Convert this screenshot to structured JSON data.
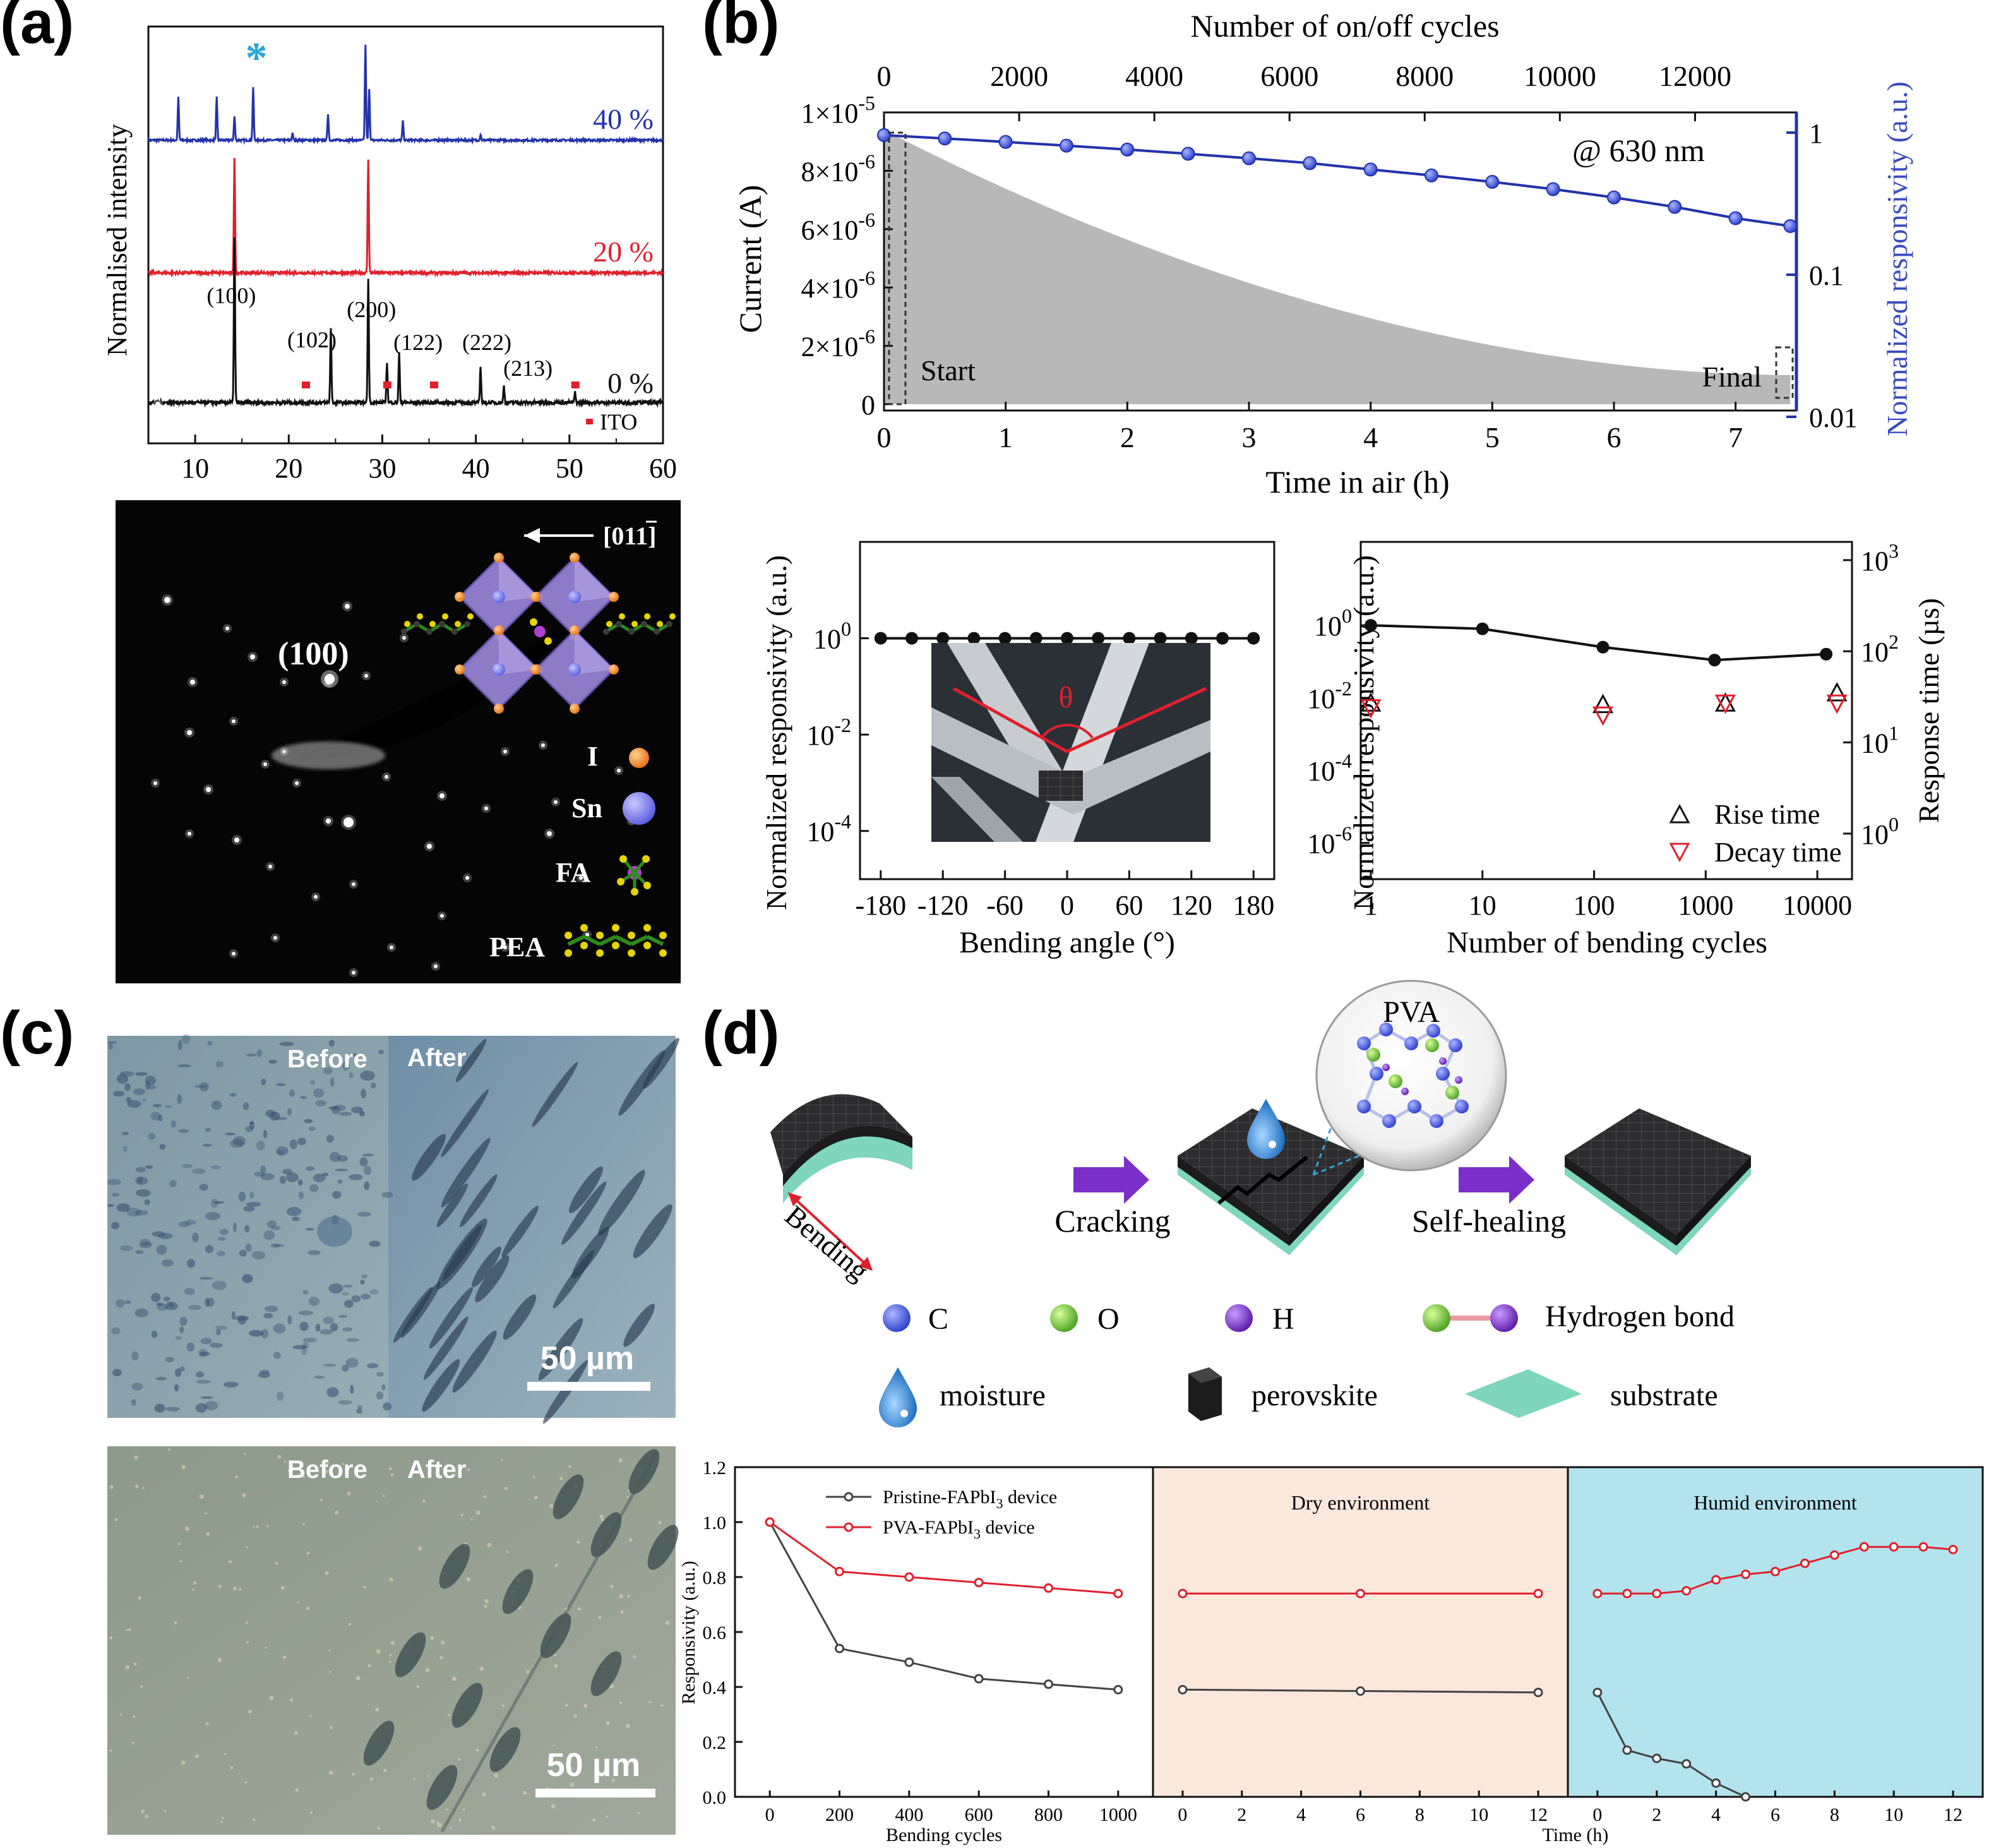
{
  "panels": {
    "a": "(a)",
    "b": "(b)",
    "c": "(c)",
    "d": "(d)"
  },
  "colors": {
    "blue": "#2233aa",
    "red": "#e0202c",
    "black": "#111111",
    "cyan": "#2aa6d9",
    "gray_fill": "#b8b8b8",
    "dry_bg": "#fbe8dc",
    "humid_bg": "#b3e3ed",
    "teal": "#7fd6bd",
    "purple": "#7a30c8"
  },
  "chart_data": [
    {
      "id": "xrd",
      "type": "line",
      "xlabel": "",
      "ylabel": "Normalised intensity",
      "xlim": [
        5,
        60
      ],
      "xticks": [
        10,
        20,
        30,
        40,
        50,
        60
      ],
      "series": [
        {
          "name": "40 %",
          "color": "#2233aa",
          "peaks": [
            [
              8.2,
              0.45
            ],
            [
              12.3,
              0.45
            ],
            [
              14.2,
              0.25
            ],
            [
              16.2,
              0.55
            ],
            [
              20.4,
              0.07
            ],
            [
              24.2,
              0.28
            ],
            [
              28.2,
              1.0
            ],
            [
              28.6,
              0.55
            ],
            [
              32.2,
              0.2
            ],
            [
              40.5,
              0.06
            ]
          ]
        },
        {
          "name": "20 %",
          "color": "#e0202c",
          "peaks": [
            [
              14.2,
              1.0
            ],
            [
              28.5,
              1.0
            ]
          ]
        },
        {
          "name": "0 %",
          "color": "#111111",
          "peaks": [
            [
              14.2,
              1.0
            ],
            [
              24.5,
              0.45
            ],
            [
              28.5,
              0.75
            ],
            [
              30.5,
              0.25
            ],
            [
              31.8,
              0.3
            ],
            [
              40.5,
              0.22
            ],
            [
              43.0,
              0.1
            ],
            [
              50.6,
              0.06
            ]
          ]
        }
      ],
      "peak_labels": [
        {
          "label": "(100)",
          "x": 14.2
        },
        {
          "label": "(102)",
          "x": 24.5
        },
        {
          "label": "(200)",
          "x": 28.5
        },
        {
          "label": "(122)",
          "x": 31.8
        },
        {
          "label": "(222)",
          "x": 40.5
        },
        {
          "label": "(213)",
          "x": 43.0
        }
      ],
      "ito_markers_x": [
        21.8,
        30.5,
        35.5,
        50.6
      ],
      "ito_legend": "ITO",
      "star_x": 16.2
    },
    {
      "id": "stability",
      "type": "line",
      "xlabel": "Time in air (h)",
      "ylabel": "Current (A)",
      "top_label": "Number of on/off cycles",
      "y2label": "Normalized responsivity (a.u.)",
      "xlim": [
        0,
        7.5
      ],
      "xticks": [
        0,
        1,
        2,
        3,
        4,
        5,
        6,
        7
      ],
      "top_xlim": [
        0,
        13500
      ],
      "top_xticks": [
        0,
        2000,
        4000,
        6000,
        8000,
        10000,
        12000
      ],
      "ylim": [
        0,
        1e-05
      ],
      "yticks": [
        0,
        2e-06,
        4e-06,
        6e-06,
        8e-06,
        1e-05
      ],
      "ytick_labels": [
        {
          "mant": "0",
          "exp": ""
        },
        {
          "mant": "2×10",
          "exp": "-6"
        },
        {
          "mant": "4×10",
          "exp": "-6"
        },
        {
          "mant": "6×10",
          "exp": "-6"
        },
        {
          "mant": "8×10",
          "exp": "-6"
        },
        {
          "mant": "1×10",
          "exp": "-5"
        }
      ],
      "y2_log_range": [
        0.01,
        1
      ],
      "y2ticks": [
        {
          "v": 1,
          "label": "1"
        },
        {
          "v": 0.1,
          "label": "0.1"
        },
        {
          "v": 0.01,
          "label": "0.01"
        }
      ],
      "annotation": "@ 630 nm",
      "start_label": "Start",
      "final_label": "Final",
      "envelope": {
        "start": 9.4e-06,
        "end": 1e-06
      },
      "responsivity": {
        "x": [
          0,
          0.5,
          1,
          1.5,
          2,
          2.5,
          3,
          3.5,
          4,
          4.5,
          5,
          5.5,
          6,
          6.5,
          7,
          7.45
        ],
        "y": [
          0.96,
          0.91,
          0.86,
          0.81,
          0.76,
          0.71,
          0.66,
          0.61,
          0.55,
          0.5,
          0.45,
          0.4,
          0.35,
          0.3,
          0.25,
          0.22
        ]
      }
    },
    {
      "id": "bending_angle",
      "type": "scatter",
      "xlabel": "Bending angle (°)",
      "ylabel": "Normalized responsivity (a.u.)",
      "xticks": [
        -180,
        -120,
        -60,
        0,
        60,
        120,
        180
      ],
      "xlim": [
        -200,
        200
      ],
      "ylog": [
        1e-05,
        100
      ],
      "yticks": [
        {
          "v": 1,
          "exp": "0"
        },
        {
          "v": 0.01,
          "exp": "-2"
        },
        {
          "v": 0.0001,
          "exp": "-4"
        }
      ],
      "x": [
        -180,
        -150,
        -120,
        -90,
        -60,
        -30,
        0,
        30,
        60,
        90,
        120,
        150,
        180
      ],
      "y": [
        1,
        1,
        1,
        1,
        1,
        1,
        1,
        1,
        1,
        1,
        1,
        1,
        1
      ],
      "inset_label": "θ"
    },
    {
      "id": "bending_cycles",
      "type": "scatter",
      "xlabel": "Number of bending cycles",
      "ylabel": "Normalized responsivity (a.u.)",
      "y2label": "Response time (µs)",
      "xticks": [
        {
          "v": 1,
          "label": "1"
        },
        {
          "v": 10,
          "label": "10"
        },
        {
          "v": 100,
          "label": "100"
        },
        {
          "v": 1000,
          "label": "1000"
        },
        {
          "v": 10000,
          "label": "10000"
        }
      ],
      "yticks": [
        {
          "v": 1,
          "exp": "0"
        },
        {
          "v": 0.01,
          "exp": "-2"
        },
        {
          "v": 0.0001,
          "exp": "-4"
        },
        {
          "v": 1e-06,
          "exp": "-6"
        }
      ],
      "y2ticks": [
        {
          "v": 1,
          "exp": "0"
        },
        {
          "v": 10,
          "exp": "1"
        },
        {
          "v": 100,
          "exp": "2"
        },
        {
          "v": 1000,
          "exp": "3"
        }
      ],
      "responsivity": {
        "x": [
          1,
          10,
          120,
          1200,
          12000
        ],
        "y": [
          1,
          0.8,
          0.25,
          0.11,
          0.16
        ]
      },
      "series": [
        {
          "name": "Rise time",
          "color": "#111111",
          "x": [
            1,
            120,
            1500,
            15000
          ],
          "y": [
            27,
            26,
            27,
            35
          ]
        },
        {
          "name": "Decay time",
          "color": "#e0202c",
          "x": [
            1,
            120,
            1500,
            15000
          ],
          "y": [
            24,
            20,
            27,
            27
          ]
        }
      ]
    },
    {
      "id": "healing",
      "type": "line",
      "ylabel": "Responsivity (a.u.)",
      "ylim": [
        0,
        1.2
      ],
      "yticks": [
        0.0,
        0.2,
        0.4,
        0.6,
        0.8,
        1.0,
        1.2
      ],
      "segments": [
        {
          "title": "",
          "xlabel": "Bending cycles",
          "xlim": [
            -100,
            1100
          ],
          "xticks": [
            0,
            200,
            400,
            600,
            800,
            1000
          ]
        },
        {
          "title": "Dry environment",
          "xlabel": "",
          "xlim": [
            -1,
            13
          ],
          "xticks": [
            0,
            2,
            4,
            6,
            8,
            10,
            12
          ]
        },
        {
          "title": "Humid environment",
          "xlabel": "Time (h)",
          "xlim": [
            -1,
            13
          ],
          "xticks": [
            0,
            2,
            4,
            6,
            8,
            10,
            12
          ]
        }
      ],
      "series": [
        {
          "name": "Pristine-FAPbI",
          "sub": "3",
          "name_tail": " device",
          "color": "#444444",
          "data": [
            {
              "x": [
                0,
                200,
                400,
                600,
                800,
                1000
              ],
              "y": [
                1.0,
                0.54,
                0.49,
                0.43,
                0.41,
                0.39
              ]
            },
            {
              "x": [
                0,
                6,
                12
              ],
              "y": [
                0.39,
                0.385,
                0.38
              ]
            },
            {
              "x": [
                0,
                1,
                2,
                3,
                4,
                5
              ],
              "y": [
                0.38,
                0.17,
                0.14,
                0.12,
                0.05,
                0.0
              ]
            }
          ]
        },
        {
          "name": "PVA-FAPbI",
          "sub": "3",
          "name_tail": " device",
          "color": "#e0202c",
          "data": [
            {
              "x": [
                0,
                200,
                400,
                600,
                800,
                1000
              ],
              "y": [
                1.0,
                0.82,
                0.8,
                0.78,
                0.76,
                0.74
              ]
            },
            {
              "x": [
                0,
                6,
                12
              ],
              "y": [
                0.74,
                0.74,
                0.74
              ]
            },
            {
              "x": [
                0,
                1,
                2,
                3,
                4,
                5,
                6,
                7,
                8,
                9,
                10,
                11,
                12
              ],
              "y": [
                0.74,
                0.74,
                0.74,
                0.75,
                0.79,
                0.81,
                0.82,
                0.85,
                0.88,
                0.91,
                0.91,
                0.91,
                0.9
              ]
            }
          ]
        }
      ]
    }
  ],
  "saed": {
    "zone_axis": "[011]",
    "spot_label": "(100)",
    "legend": [
      "I",
      "Sn",
      "FA",
      "PEA"
    ]
  },
  "micrographs": {
    "before": "Before",
    "after": "After",
    "scale": "50 µm"
  },
  "schematic": {
    "pva": "PVA",
    "bending": "Bending",
    "cracking": "Cracking",
    "healing": "Self-healing",
    "legend": {
      "c": "C",
      "o": "O",
      "h": "H",
      "hbond": "Hydrogen bond",
      "moisture": "moisture",
      "perovskite": "perovskite",
      "substrate": "substrate"
    }
  }
}
